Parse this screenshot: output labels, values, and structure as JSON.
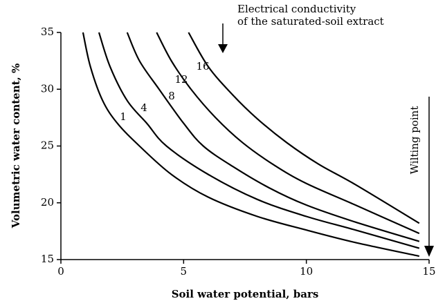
{
  "chart_data": {
    "type": "line",
    "x_label": "Soil water potential, bars",
    "y_label": "Volumetric water content, %",
    "annotations": [
      "Electrical conductivity",
      "of the saturated-soil extract",
      "Wilting point"
    ],
    "xlim": [
      0,
      15
    ],
    "ylim": [
      15,
      35
    ],
    "xticks": [
      0,
      5,
      10,
      15
    ],
    "yticks": [
      15,
      20,
      25,
      30,
      35
    ],
    "series": [
      {
        "name": "1",
        "color": "#000000",
        "x": [
          0.9,
          1.2,
          1.7,
          2.3,
          3.2,
          4.5,
          6,
          8,
          10,
          12,
          14.6
        ],
        "values": [
          35,
          32,
          29,
          27,
          25,
          22.5,
          20.5,
          18.8,
          17.6,
          16.5,
          15.3
        ]
      },
      {
        "name": "4",
        "color": "#000000",
        "x": [
          1.55,
          2,
          2.7,
          3.5,
          4.3,
          6,
          8,
          10,
          12,
          14.6
        ],
        "values": [
          35,
          32,
          29,
          27,
          25,
          22.5,
          20.3,
          18.8,
          17.6,
          16.0
        ]
      },
      {
        "name": "8",
        "color": "#000000",
        "x": [
          2.7,
          3.2,
          4,
          5,
          5.8,
          7,
          8.5,
          10,
          12,
          14.6
        ],
        "values": [
          35,
          32.5,
          30,
          27,
          25,
          23.2,
          21.3,
          19.8,
          18.3,
          16.6
        ]
      },
      {
        "name": "12",
        "color": "#000000",
        "x": [
          3.9,
          4.5,
          5.3,
          6.3,
          7.4,
          8.7,
          10,
          12,
          14.6
        ],
        "values": [
          35,
          32.5,
          30,
          27.5,
          25.3,
          23.3,
          21.7,
          19.8,
          17.3
        ]
      },
      {
        "name": "16",
        "color": "#000000",
        "x": [
          5.2,
          6,
          7,
          8,
          9.2,
          10.5,
          12,
          14.6
        ],
        "values": [
          35,
          32,
          29.5,
          27.4,
          25.3,
          23.4,
          21.6,
          18.2
        ]
      }
    ]
  }
}
